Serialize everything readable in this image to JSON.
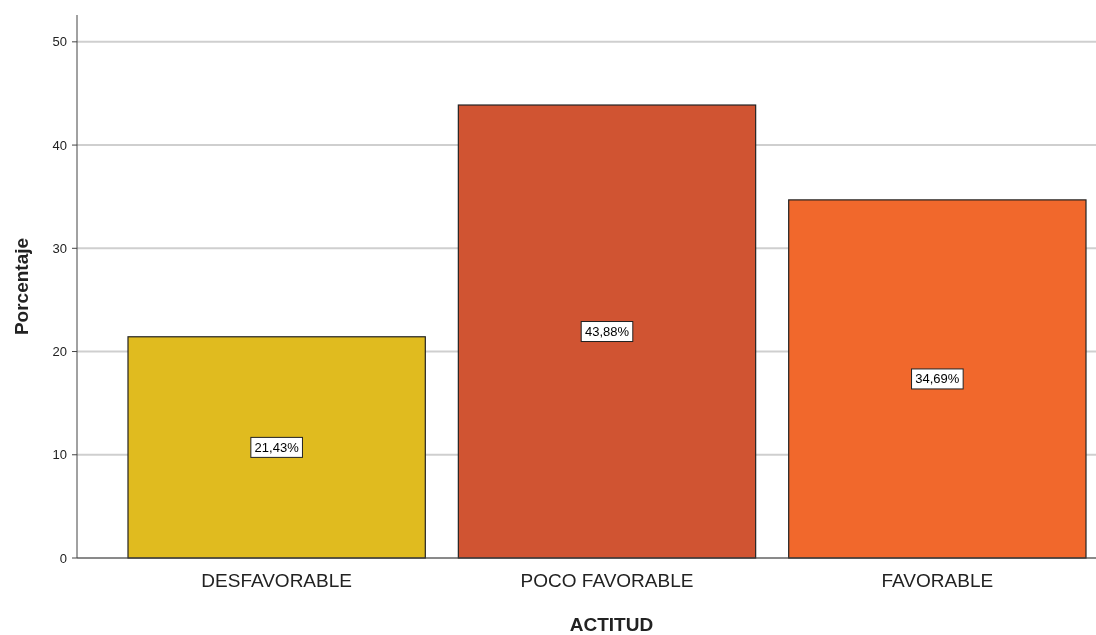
{
  "chart_data": {
    "type": "bar",
    "xlabel": "ACTITUD",
    "ylabel": "Porcentaje",
    "categories": [
      "DESFAVORABLE",
      "POCO FAVORABLE",
      "FAVORABLE"
    ],
    "values": [
      21.43,
      43.88,
      34.69
    ],
    "colors": [
      "#e0bb1f",
      "#d05432",
      "#f1682c"
    ],
    "value_labels": [
      "21,43%",
      "43,88%",
      "34,69%"
    ],
    "ylim": [
      0,
      52.6
    ],
    "yticks": [
      0,
      10,
      20,
      30,
      40,
      50
    ],
    "grid": "y"
  }
}
